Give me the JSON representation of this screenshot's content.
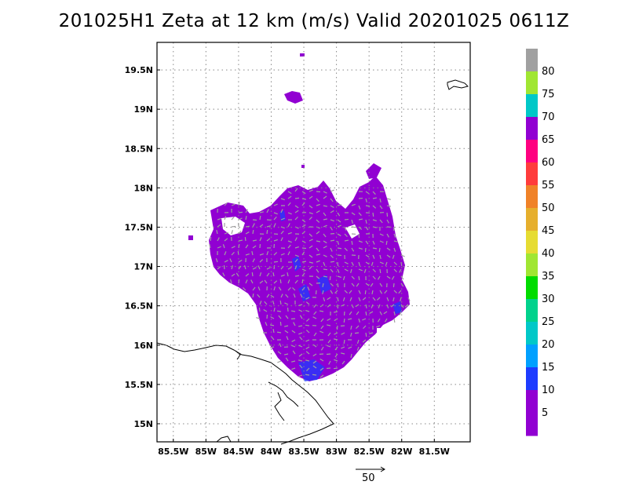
{
  "title": "201025H1  Zeta at 12 km (m/s) Valid 20201025  0611Z",
  "map": {
    "lon_range": [
      -85.75,
      -80.95
    ],
    "lat_range": [
      14.77,
      19.85
    ],
    "lat_ticks": [
      "19.5N",
      "19N",
      "18.5N",
      "18N",
      "17.5N",
      "17N",
      "16.5N",
      "16N",
      "15.5N",
      "15N"
    ],
    "lat_values": [
      19.5,
      19,
      18.5,
      18,
      17.5,
      17,
      16.5,
      16,
      15.5,
      15
    ],
    "lon_ticks": [
      "85.5W",
      "85W",
      "84.5W",
      "84W",
      "83.5W",
      "83W",
      "82.5W",
      "82W",
      "81.5W"
    ],
    "lon_values": [
      -85.5,
      -85,
      -84.5,
      -84,
      -83.5,
      -83,
      -82.5,
      -82,
      -81.5
    ],
    "grid": true,
    "field_color": "#9100d2",
    "vector_color": "#a0a0a0"
  },
  "colorbar": {
    "labels": [
      "80",
      "75",
      "70",
      "65",
      "60",
      "55",
      "50",
      "45",
      "40",
      "35",
      "30",
      "25",
      "20",
      "15",
      "10",
      "5"
    ],
    "colors": [
      "#a0a0a0",
      "#a0e632",
      "#00c8c8",
      "#9100d2",
      "#ff0080",
      "#ff3c3c",
      "#f08228",
      "#e6af2d",
      "#e6dc32",
      "#a0e632",
      "#00dc00",
      "#00d28c",
      "#00c8c8",
      "#00a0ff",
      "#1e3cff",
      "#9100d2",
      "#9100d2"
    ]
  },
  "vector_key": {
    "label": "50"
  }
}
